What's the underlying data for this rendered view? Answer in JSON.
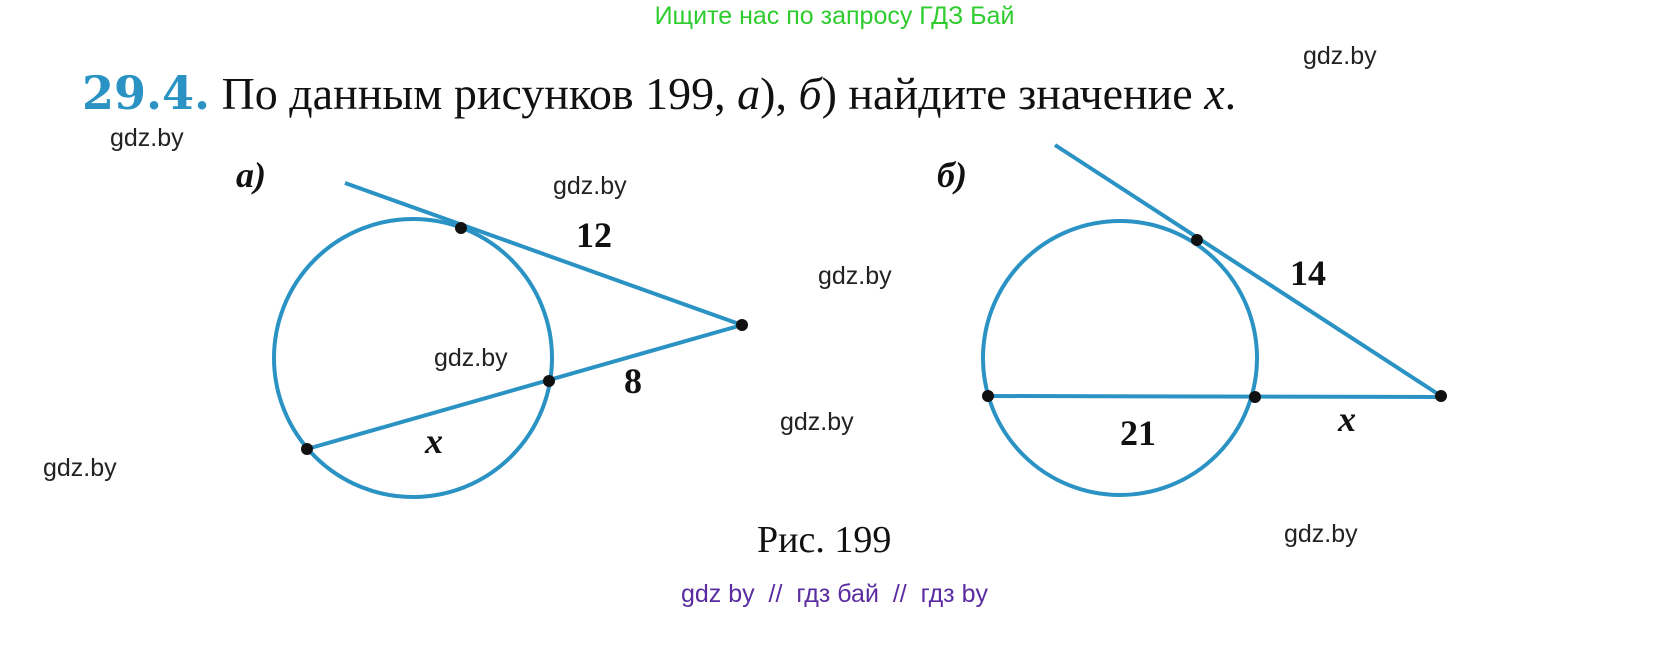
{
  "header_banner": "Ищите нас по запросу ГДЗ Бай",
  "problem": {
    "number": "29.4.",
    "text_before": "По данным рисунков 199, ",
    "part_a": "а",
    "sep": "), ",
    "part_b": "б",
    "text_after": ") найдите значение ",
    "variable": "x",
    "end": "."
  },
  "figure_a": {
    "label": "а)",
    "tangent": "12",
    "external": "8",
    "unknown": "x"
  },
  "figure_b": {
    "label": "б)",
    "tangent": "14",
    "chord": "21",
    "unknown": "x"
  },
  "caption": "Рис. 199",
  "watermark": "gdz.by",
  "footer": "gdz by  //  гдз бай  //  гдз by",
  "colors": {
    "accent": "#2a93c4",
    "banner": "#2ecc2e",
    "footer": "#5a2ca0"
  }
}
